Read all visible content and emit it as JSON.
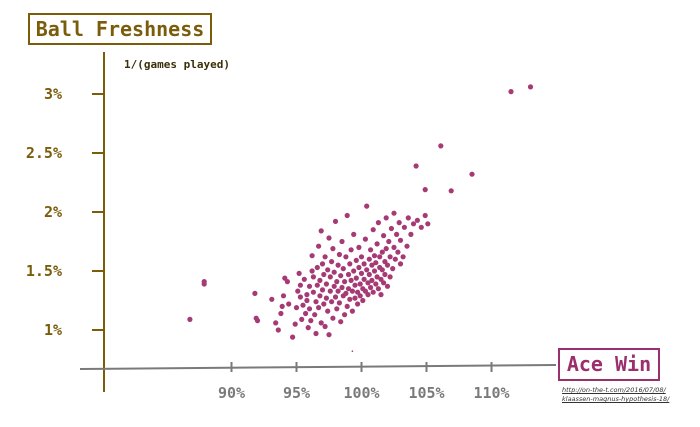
{
  "chart_data": {
    "type": "scatter",
    "title": "",
    "ylabel": "Ball Freshness",
    "yunit": "1/(games played)",
    "xlabel": "Ace Win",
    "source": [
      "http://on-the-t.com/2016/07/08/",
      "klaassen-magnus-hypothesis-18/"
    ],
    "x_ticks": [
      "90%",
      "95%",
      "100%",
      "105%",
      "110%"
    ],
    "x_tick_values": [
      90,
      95,
      100,
      105,
      110
    ],
    "y_ticks": [
      "1%",
      "1.5%",
      "2%",
      "2.5%",
      "3%"
    ],
    "y_tick_values": [
      1.0,
      1.5,
      2.0,
      2.5,
      3.0
    ],
    "xlim": [
      84.5,
      113.5
    ],
    "ylim": [
      0.7,
      3.35
    ],
    "grid": false,
    "colors": {
      "points": "#a63a74",
      "yaxis": "#7a5c0a",
      "xaxis": "#7a7a7a"
    },
    "points": [
      [
        86.8,
        1.09
      ],
      [
        87.9,
        1.41
      ],
      [
        87.9,
        1.39
      ],
      [
        91.8,
        1.31
      ],
      [
        91.9,
        1.1
      ],
      [
        92.0,
        1.08
      ],
      [
        93.1,
        1.26
      ],
      [
        93.4,
        1.06
      ],
      [
        93.6,
        1.0
      ],
      [
        93.8,
        1.14
      ],
      [
        93.9,
        1.2
      ],
      [
        94.0,
        1.29
      ],
      [
        94.1,
        1.44
      ],
      [
        94.3,
        1.41
      ],
      [
        94.4,
        1.22
      ],
      [
        94.7,
        0.94
      ],
      [
        94.9,
        1.05
      ],
      [
        95.0,
        1.19
      ],
      [
        95.1,
        1.33
      ],
      [
        95.2,
        1.48
      ],
      [
        95.3,
        1.38
      ],
      [
        95.3,
        1.28
      ],
      [
        95.4,
        1.09
      ],
      [
        95.5,
        1.21
      ],
      [
        95.6,
        1.43
      ],
      [
        95.7,
        1.14
      ],
      [
        95.8,
        1.3
      ],
      [
        95.8,
        1.25
      ],
      [
        95.9,
        1.02
      ],
      [
        96.0,
        1.37
      ],
      [
        96.0,
        1.18
      ],
      [
        96.1,
        1.08
      ],
      [
        96.2,
        1.5
      ],
      [
        96.2,
        1.63
      ],
      [
        96.3,
        1.32
      ],
      [
        96.3,
        1.45
      ],
      [
        96.4,
        1.13
      ],
      [
        96.5,
        1.24
      ],
      [
        96.5,
        0.97
      ],
      [
        96.6,
        1.38
      ],
      [
        96.6,
        1.53
      ],
      [
        96.7,
        1.71
      ],
      [
        96.7,
        1.19
      ],
      [
        96.8,
        1.42
      ],
      [
        96.8,
        1.29
      ],
      [
        96.9,
        1.06
      ],
      [
        96.9,
        1.84
      ],
      [
        97.0,
        1.56
      ],
      [
        97.0,
        1.34
      ],
      [
        97.1,
        1.22
      ],
      [
        97.1,
        1.47
      ],
      [
        97.2,
        1.03
      ],
      [
        97.2,
        1.62
      ],
      [
        97.3,
        1.39
      ],
      [
        97.3,
        1.27
      ],
      [
        97.4,
        1.51
      ],
      [
        97.4,
        1.16
      ],
      [
        97.5,
        1.78
      ],
      [
        97.5,
        0.96
      ],
      [
        97.6,
        1.33
      ],
      [
        97.6,
        1.45
      ],
      [
        97.7,
        1.24
      ],
      [
        97.7,
        1.58
      ],
      [
        97.8,
        1.1
      ],
      [
        97.8,
        1.69
      ],
      [
        97.9,
        1.37
      ],
      [
        97.9,
        1.49
      ],
      [
        98.0,
        1.28
      ],
      [
        98.0,
        1.92
      ],
      [
        98.1,
        1.18
      ],
      [
        98.1,
        1.41
      ],
      [
        98.2,
        1.55
      ],
      [
        98.2,
        1.33
      ],
      [
        98.3,
        1.23
      ],
      [
        98.3,
        1.64
      ],
      [
        98.4,
        1.07
      ],
      [
        98.4,
        1.46
      ],
      [
        98.5,
        1.36
      ],
      [
        98.5,
        1.75
      ],
      [
        98.6,
        1.29
      ],
      [
        98.6,
        1.52
      ],
      [
        98.7,
        1.13
      ],
      [
        98.7,
        1.41
      ],
      [
        98.8,
        1.62
      ],
      [
        98.8,
        1.31
      ],
      [
        98.9,
        1.2
      ],
      [
        98.9,
        1.97
      ],
      [
        99.0,
        1.47
      ],
      [
        99.0,
        1.35
      ],
      [
        99.1,
        1.56
      ],
      [
        99.1,
        1.26
      ],
      [
        99.2,
        1.42
      ],
      [
        99.2,
        1.68
      ],
      [
        99.3,
        1.16
      ],
      [
        99.3,
        1.33
      ],
      [
        99.4,
        1.5
      ],
      [
        99.4,
        1.81
      ],
      [
        99.5,
        1.38
      ],
      [
        99.5,
        1.27
      ],
      [
        99.6,
        1.59
      ],
      [
        99.6,
        1.44
      ],
      [
        99.7,
        1.32
      ],
      [
        99.7,
        1.22
      ],
      [
        99.8,
        1.53
      ],
      [
        99.8,
        1.7
      ],
      [
        99.9,
        1.39
      ],
      [
        99.9,
        1.29
      ],
      [
        100.0,
        1.48
      ],
      [
        100.0,
        1.62
      ],
      [
        100.1,
        1.35
      ],
      [
        100.1,
        1.25
      ],
      [
        100.2,
        1.56
      ],
      [
        100.2,
        1.43
      ],
      [
        100.3,
        1.77
      ],
      [
        100.3,
        1.33
      ],
      [
        100.4,
        1.51
      ],
      [
        100.4,
        2.05
      ],
      [
        100.5,
        1.4
      ],
      [
        100.5,
        1.3
      ],
      [
        100.6,
        1.6
      ],
      [
        100.6,
        1.47
      ],
      [
        100.7,
        1.36
      ],
      [
        100.7,
        1.68
      ],
      [
        100.8,
        1.55
      ],
      [
        100.8,
        1.42
      ],
      [
        100.9,
        1.32
      ],
      [
        100.9,
        1.85
      ],
      [
        101.0,
        1.5
      ],
      [
        101.0,
        1.63
      ],
      [
        101.1,
        1.39
      ],
      [
        101.1,
        1.57
      ],
      [
        101.2,
        1.45
      ],
      [
        101.2,
        1.73
      ],
      [
        101.3,
        1.35
      ],
      [
        101.3,
        1.91
      ],
      [
        101.4,
        1.53
      ],
      [
        101.4,
        1.62
      ],
      [
        101.5,
        1.43
      ],
      [
        101.5,
        1.3
      ],
      [
        101.6,
        1.66
      ],
      [
        101.6,
        1.51
      ],
      [
        101.7,
        1.8
      ],
      [
        101.7,
        1.4
      ],
      [
        101.8,
        1.58
      ],
      [
        101.8,
        1.47
      ],
      [
        101.9,
        1.69
      ],
      [
        101.9,
        1.95
      ],
      [
        102.0,
        1.55
      ],
      [
        102.0,
        1.37
      ],
      [
        102.1,
        1.75
      ],
      [
        102.2,
        1.62
      ],
      [
        102.2,
        1.45
      ],
      [
        102.3,
        1.86
      ],
      [
        102.4,
        1.52
      ],
      [
        102.5,
        1.7
      ],
      [
        102.5,
        1.99
      ],
      [
        102.6,
        1.6
      ],
      [
        102.7,
        1.81
      ],
      [
        102.8,
        1.66
      ],
      [
        102.9,
        1.91
      ],
      [
        103.0,
        1.56
      ],
      [
        103.0,
        1.76
      ],
      [
        103.2,
        1.62
      ],
      [
        103.3,
        1.87
      ],
      [
        103.5,
        1.71
      ],
      [
        103.6,
        1.95
      ],
      [
        103.8,
        1.81
      ],
      [
        104.0,
        1.9
      ],
      [
        104.3,
        1.93
      ],
      [
        104.6,
        1.87
      ],
      [
        104.9,
        1.97
      ],
      [
        105.1,
        1.9
      ],
      [
        99.3,
        0.82
      ],
      [
        104.2,
        2.39
      ],
      [
        104.9,
        2.19
      ],
      [
        106.1,
        2.56
      ],
      [
        106.9,
        2.18
      ],
      [
        108.5,
        2.32
      ],
      [
        111.5,
        3.02
      ],
      [
        113.0,
        3.06
      ]
    ]
  }
}
